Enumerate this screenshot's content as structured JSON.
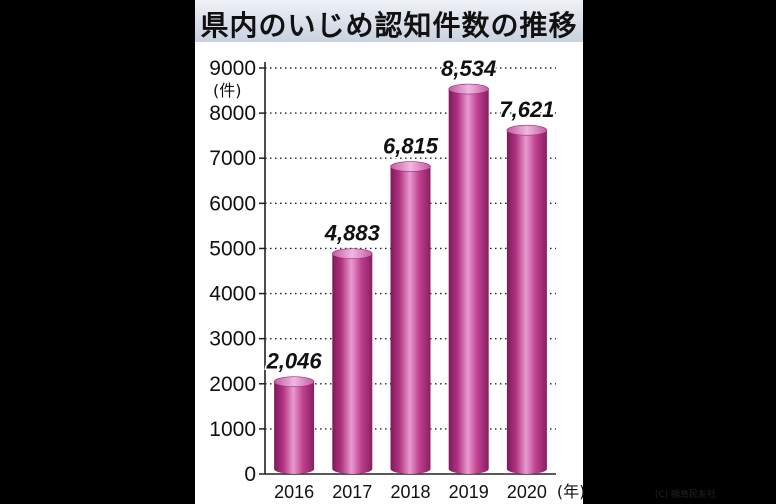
{
  "chart_data": {
    "type": "bar",
    "title": "県内のいじめ認知件数の推移",
    "ylabel": "(件)",
    "xlabel": "(年)",
    "categories": [
      "2016",
      "2017",
      "2018",
      "2019",
      "2020"
    ],
    "values": [
      2046,
      4883,
      6815,
      8534,
      7621
    ],
    "value_labels": [
      "2,046",
      "4,883",
      "6,815",
      "8,534",
      "7,621"
    ],
    "y_ticks": [
      0,
      1000,
      2000,
      3000,
      4000,
      5000,
      6000,
      7000,
      8000,
      9000
    ],
    "ylim": [
      0,
      9000
    ],
    "grid": true,
    "grid_style": "dotted horizontal",
    "bar_color": "#b0317f",
    "bar_highlight": "#e89ad0"
  },
  "credit": "(C) 福島民友社",
  "colors": {
    "background": "#000000",
    "panel": "#ffffff",
    "title_band": "#d6dce8"
  }
}
